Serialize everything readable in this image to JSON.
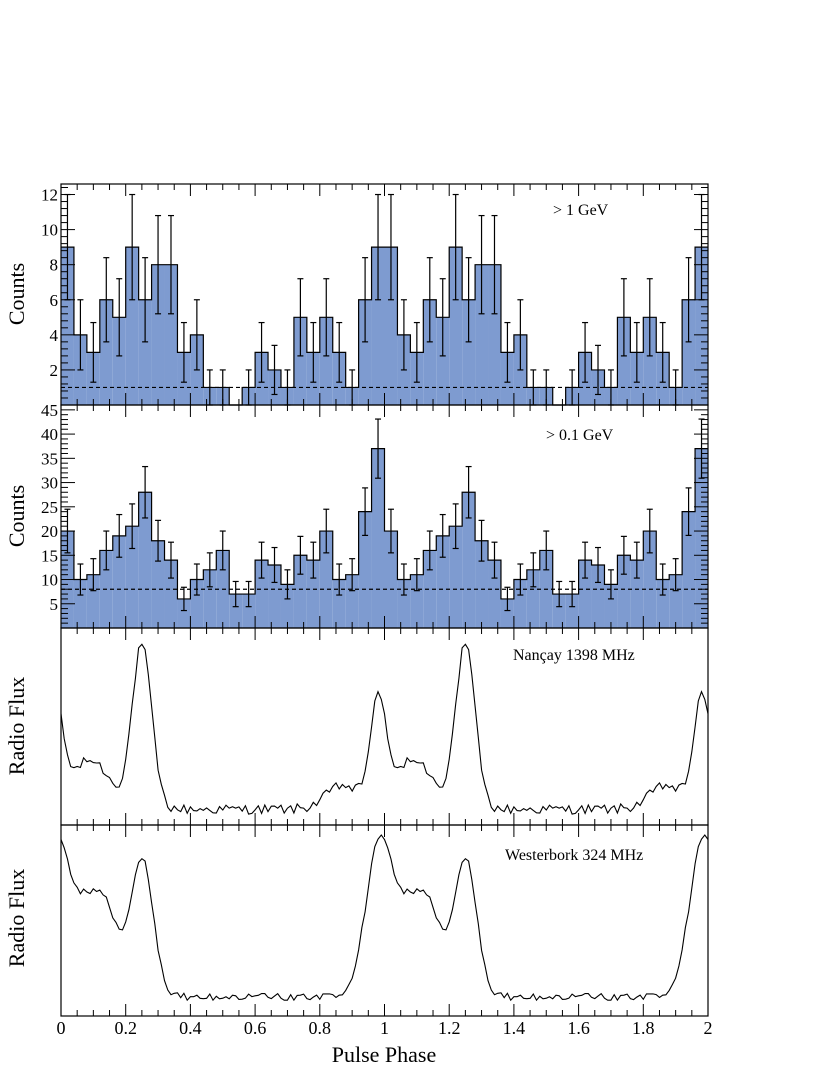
{
  "colors": {
    "fill": "#7e9bd0",
    "line": "#000000",
    "background": "#ffffff"
  },
  "chart_data": [
    {
      "type": "bar",
      "panel": "gamma-high",
      "label": "> 1 GeV",
      "ylabel": "Counts",
      "xlim": [
        0,
        2
      ],
      "ylim": [
        0,
        12.6
      ],
      "yticks": [
        2,
        4,
        6,
        8,
        10,
        12
      ],
      "background_level": 1.0,
      "bin_width": 0.04,
      "values": [
        9,
        4,
        3,
        6,
        5,
        9,
        6,
        8,
        8,
        3,
        4,
        1,
        1,
        0,
        1,
        3,
        2,
        1,
        5,
        3,
        5,
        3,
        1,
        6,
        9,
        9,
        4,
        3,
        6,
        5,
        9,
        6,
        8,
        8,
        3,
        4,
        1,
        1,
        0,
        1,
        3,
        2,
        1,
        5,
        3,
        5,
        3,
        1,
        6,
        9
      ],
      "errors": [
        3,
        2,
        1.7,
        2.4,
        2.2,
        3,
        2.4,
        2.8,
        2.8,
        1.7,
        2,
        1,
        1,
        0,
        1,
        1.7,
        1.4,
        1,
        2.2,
        1.7,
        2.2,
        1.7,
        1,
        2.4,
        3,
        3,
        2,
        1.7,
        2.4,
        2.2,
        3,
        2.4,
        2.8,
        2.8,
        1.7,
        2,
        1,
        1,
        0,
        1,
        1.7,
        1.4,
        1,
        2.2,
        1.7,
        2.2,
        1.7,
        1,
        2.4,
        3
      ]
    },
    {
      "type": "bar",
      "panel": "gamma-low",
      "label": "> 0.1 GeV",
      "ylabel": "Counts",
      "xlim": [
        0,
        2
      ],
      "ylim": [
        0,
        46
      ],
      "yticks": [
        5,
        10,
        15,
        20,
        25,
        30,
        35,
        40,
        45
      ],
      "background_level": 8.0,
      "bin_width": 0.04,
      "values": [
        20,
        10,
        11,
        16,
        19,
        21,
        28,
        18,
        14,
        6,
        10,
        12,
        16,
        7,
        7,
        14,
        13,
        9,
        15,
        14,
        20,
        10,
        11,
        24,
        37,
        20,
        10,
        11,
        16,
        19,
        21,
        28,
        18,
        14,
        6,
        10,
        12,
        16,
        7,
        7,
        14,
        13,
        9,
        15,
        14,
        20,
        10,
        11,
        24,
        37
      ],
      "errors": [
        4.5,
        3.2,
        3.3,
        4,
        4.4,
        4.6,
        5.3,
        4.2,
        3.7,
        2.4,
        3.2,
        3.5,
        4,
        2.6,
        2.6,
        3.7,
        3.6,
        3,
        3.9,
        3.7,
        4.5,
        3.2,
        3.3,
        4.9,
        6.1,
        4.5,
        3.2,
        3.3,
        4,
        4.4,
        4.6,
        5.3,
        4.2,
        3.7,
        2.4,
        3.2,
        3.5,
        4,
        2.6,
        2.6,
        3.7,
        3.6,
        3,
        3.9,
        3.7,
        4.5,
        3.2,
        3.3,
        4.9,
        6.1
      ]
    },
    {
      "type": "line",
      "panel": "radio-nancay",
      "label": "Nançay 1398 MHz",
      "ylabel": "Radio Flux",
      "xlim": [
        0,
        2
      ],
      "ylim": [
        0,
        1
      ],
      "profile": {
        "baseline": 0.08,
        "components": [
          {
            "phase": 0.25,
            "amplitude": 0.83,
            "width": 0.03
          },
          {
            "phase": 0.98,
            "amplitude": 0.52,
            "width": 0.025
          },
          {
            "phase": 0.09,
            "amplitude": 0.25,
            "width": 0.06
          },
          {
            "phase": 0.87,
            "amplitude": 0.12,
            "width": 0.05
          }
        ],
        "noise": 0.025,
        "points_per_cycle": 100
      }
    },
    {
      "type": "line",
      "panel": "radio-westerbork",
      "label": "Westerbork 324 MHz",
      "ylabel": "Radio Flux",
      "xlim": [
        0,
        2
      ],
      "ylim": [
        0,
        1
      ],
      "profile": {
        "baseline": 0.1,
        "components": [
          {
            "phase": 0.25,
            "amplitude": 0.72,
            "width": 0.035
          },
          {
            "phase": 0.98,
            "amplitude": 0.72,
            "width": 0.04
          },
          {
            "phase": 0.07,
            "amplitude": 0.42,
            "width": 0.055
          },
          {
            "phase": 0.14,
            "amplitude": 0.32,
            "width": 0.04
          }
        ],
        "noise": 0.018,
        "points_per_cycle": 100
      }
    }
  ],
  "xaxis": {
    "label": "Pulse Phase",
    "ticks": [
      "0",
      "0.2",
      "0.4",
      "0.6",
      "0.8",
      "1",
      "1.2",
      "1.4",
      "1.6",
      "1.8",
      "2"
    ]
  }
}
